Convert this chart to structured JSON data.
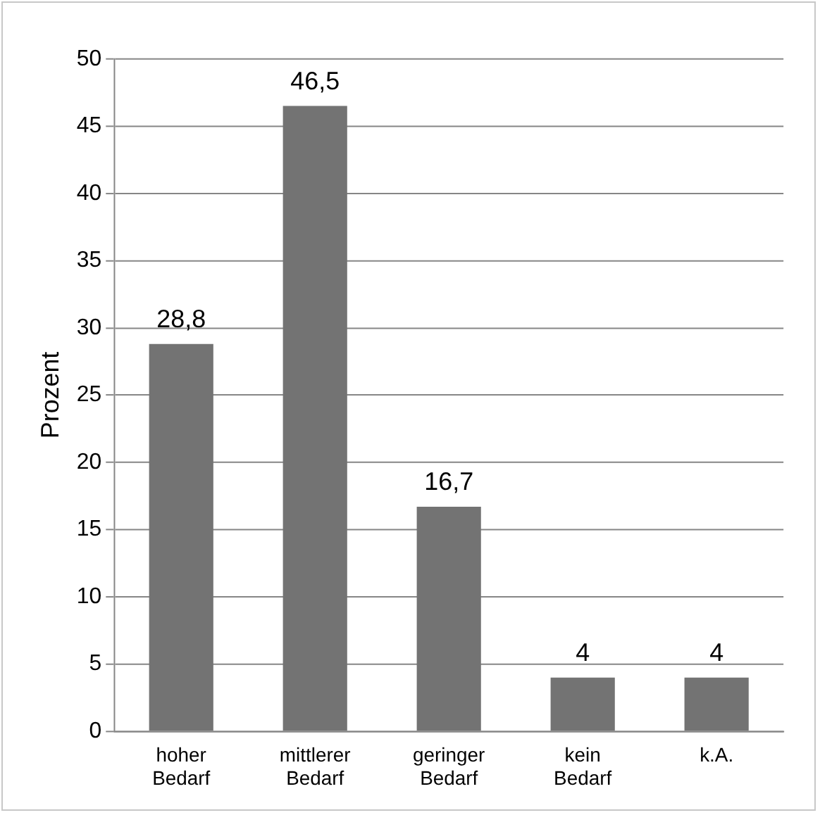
{
  "chart_data": {
    "type": "bar",
    "ylabel": "Prozent",
    "categories": [
      "hoher Bedarf",
      "mittlerer Bedarf",
      "geringer Bedarf",
      "kein Bedarf",
      "k.A."
    ],
    "values": [
      28.8,
      46.5,
      16.7,
      4,
      4
    ],
    "value_labels": [
      "28,8",
      "46,5",
      "16,7",
      "4",
      "4"
    ],
    "color": "#737373",
    "ylim": [
      0,
      50
    ],
    "yticks": [
      0,
      5,
      10,
      15,
      20,
      25,
      30,
      35,
      40,
      45,
      50
    ],
    "grid": "y",
    "legend": false
  }
}
